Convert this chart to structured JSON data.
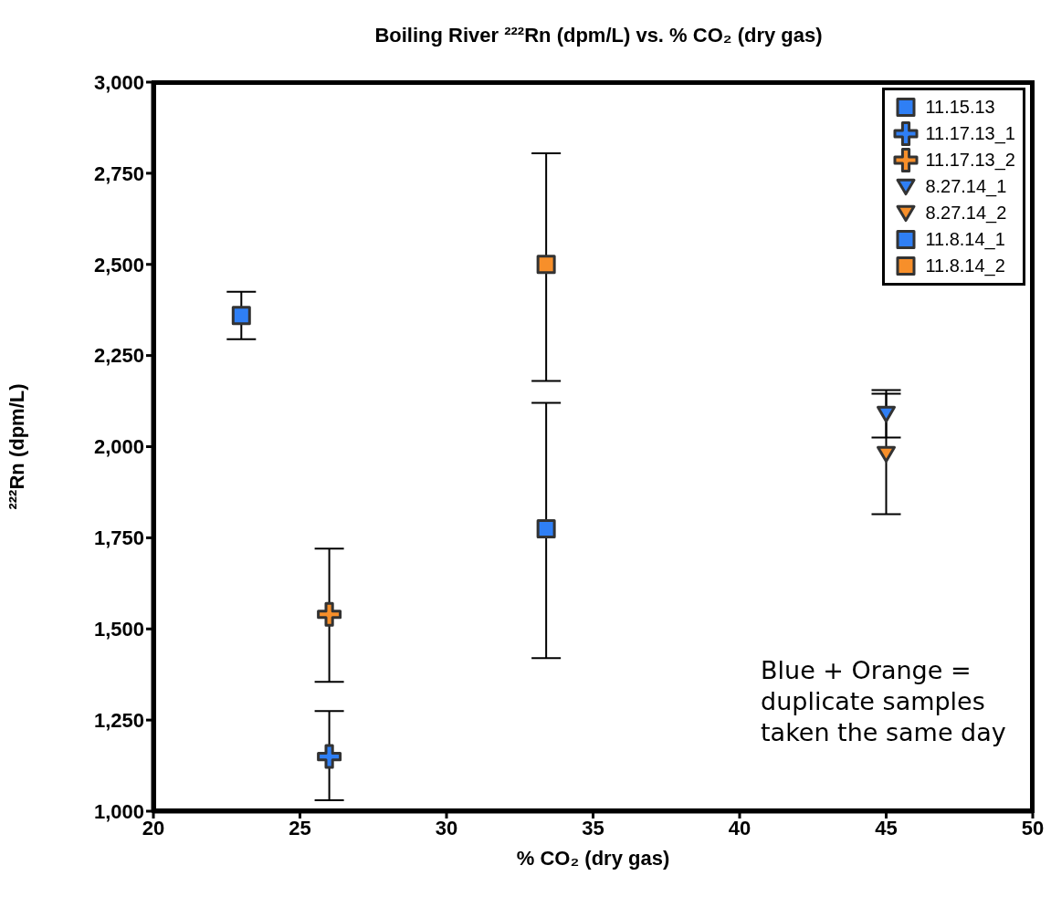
{
  "chart_data": {
    "type": "scatter",
    "title": "Boiling River ²²²Rn (dpm/L) vs. % CO₂ (dry gas)",
    "xlabel": "% CO₂ (dry gas)",
    "ylabel": "²²²Rn (dpm/L)",
    "xlim": [
      20,
      50
    ],
    "xticks": [
      20,
      25,
      30,
      35,
      40,
      45,
      50
    ],
    "ylim": [
      1000,
      3000
    ],
    "yticks": [
      {
        "value": 1000,
        "label": "1,000"
      },
      {
        "value": 1250,
        "label": "1,250"
      },
      {
        "value": 1500,
        "label": "1,500"
      },
      {
        "value": 1750,
        "label": "1,750"
      },
      {
        "value": 2000,
        "label": "2,000"
      },
      {
        "value": 2250,
        "label": "2,250"
      },
      {
        "value": 2500,
        "label": "2,500"
      },
      {
        "value": 2750,
        "label": "2,750"
      },
      {
        "value": 3000,
        "label": "3,000"
      }
    ],
    "grid": false,
    "legend": "top right",
    "annotations": [
      "Blue + Orange = duplicate samples taken the same day"
    ],
    "series": [
      {
        "name": "11.15.13",
        "color": "#2f7ff5",
        "marker": "square",
        "x": [
          23
        ],
        "values": [
          2360
        ],
        "errors": [
          [
            2295,
            2425
          ]
        ]
      },
      {
        "name": "11.17.13_1",
        "color": "#2f7ff5",
        "marker": "cross",
        "x": [
          26
        ],
        "values": [
          1150
        ],
        "errors": [
          [
            1030,
            1275
          ]
        ]
      },
      {
        "name": "11.17.13_2",
        "color": "#f78f2a",
        "marker": "cross",
        "x": [
          26
        ],
        "values": [
          1540
        ],
        "errors": [
          [
            1355,
            1720
          ]
        ]
      },
      {
        "name": "8.27.14_1",
        "color": "#2f7ff5",
        "marker": "triangle",
        "x": [
          45
        ],
        "values": [
          2090
        ],
        "errors": [
          [
            2025,
            2155
          ]
        ]
      },
      {
        "name": "8.27.14_2",
        "color": "#f78f2a",
        "marker": "triangle",
        "x": [
          45
        ],
        "values": [
          1980
        ],
        "errors": [
          [
            1815,
            2145
          ]
        ]
      },
      {
        "name": "11.8.14_1",
        "color": "#2f7ff5",
        "marker": "square",
        "x": [
          33.4
        ],
        "values": [
          1775
        ],
        "errors": [
          [
            1420,
            2120
          ]
        ]
      },
      {
        "name": "11.8.14_2",
        "color": "#f78f2a",
        "marker": "square",
        "x": [
          33.4
        ],
        "values": [
          2500
        ],
        "errors": [
          [
            2180,
            2805
          ]
        ]
      }
    ]
  }
}
